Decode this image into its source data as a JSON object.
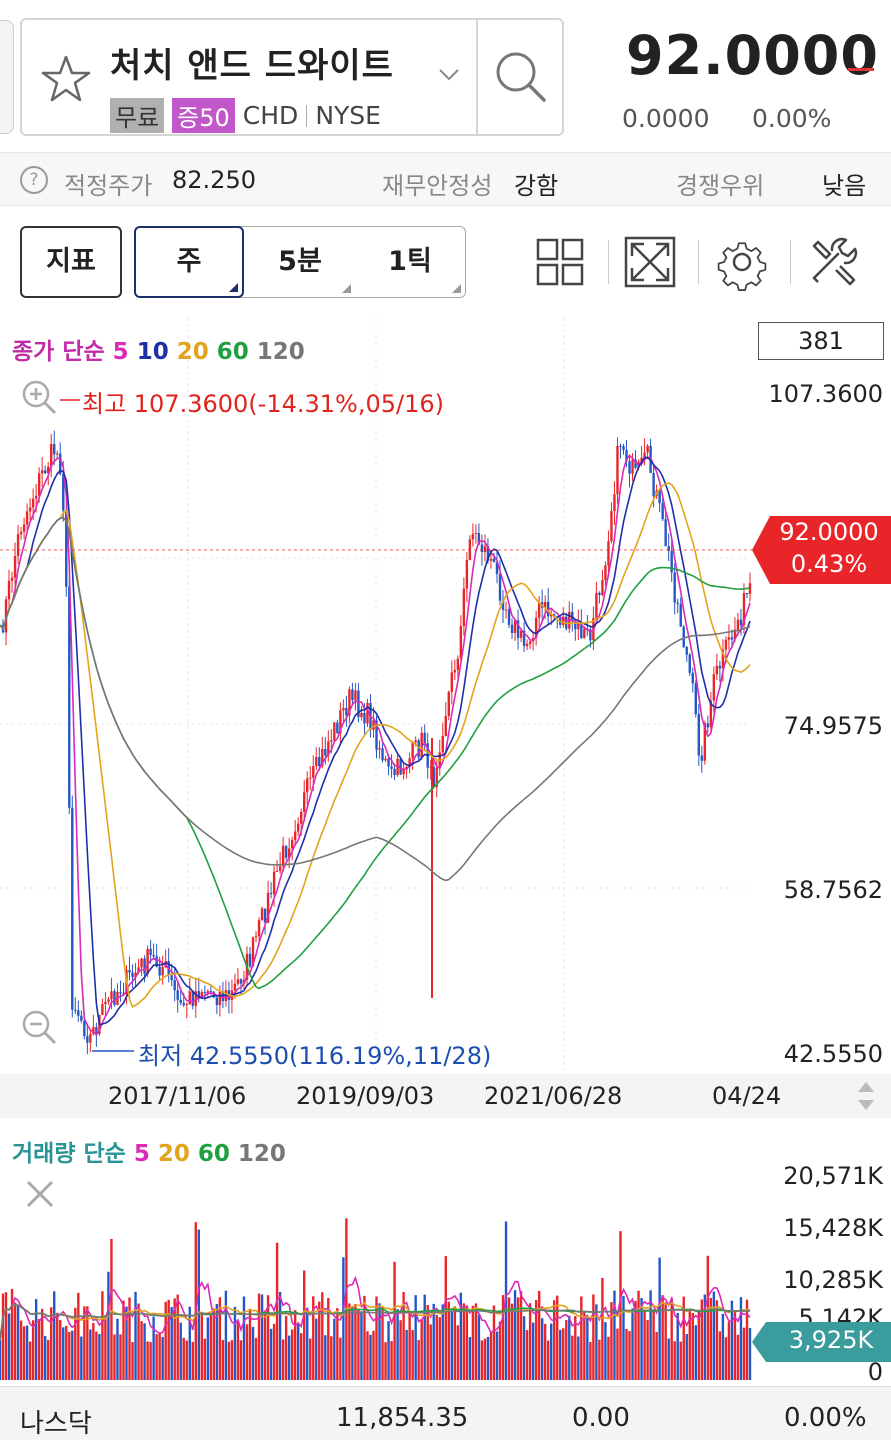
{
  "stock": {
    "name": "처치 앤드 드와이트",
    "tag_free": "무료",
    "tag_margin": "증50",
    "ticker": "CHD",
    "exchange": "NYSE",
    "price": "92.0000",
    "change": "0.0000",
    "change_rate": "0.00%"
  },
  "info_bar": {
    "fair_price_label": "적정주가",
    "fair_price_value": "82.250",
    "stability_label": "재무안정성",
    "stability_value": "강함",
    "competition_label": "경쟁우위",
    "competition_value": "낮음"
  },
  "toolbar": {
    "indicator_label": "지표",
    "periods": [
      "주",
      "5분",
      "1틱"
    ]
  },
  "price_chart": {
    "legend_title": "종가 단순",
    "ma": [
      {
        "label": "5",
        "color": "#d92bb8"
      },
      {
        "label": "10",
        "color": "#1f2fa8"
      },
      {
        "label": "20",
        "color": "#e2a41c"
      },
      {
        "label": "60",
        "color": "#20a040"
      },
      {
        "label": "120",
        "color": "#777777"
      }
    ],
    "bar_count": "381",
    "y_labels": [
      "107.3600",
      "74.9575",
      "58.7562",
      "42.5550"
    ],
    "current_price": "92.0000",
    "current_rate": "0.43%",
    "high_label": "최고 107.3600(-14.31%,05/16)",
    "low_label": "최저 42.5550(116.19%,11/28)",
    "up_color": "#e8262a",
    "down_color": "#2457c6"
  },
  "x_axis": {
    "labels": [
      "2017/11/06",
      "2019/09/03",
      "2021/06/28",
      "04/24"
    ]
  },
  "volume_chart": {
    "legend_title": "거래량 단순",
    "ma": [
      {
        "label": "5",
        "color": "#d92bb8"
      },
      {
        "label": "20",
        "color": "#e2a41c"
      },
      {
        "label": "60",
        "color": "#20a040"
      },
      {
        "label": "120",
        "color": "#777777"
      }
    ],
    "y_labels": [
      "20,571K",
      "15,428K",
      "10,285K",
      "5,142K",
      "0"
    ],
    "current_volume": "3,925K",
    "badge_color": "#3a9c9c"
  },
  "bottom_bar": {
    "index_name": "나스닥",
    "index_value": "11,854.35",
    "index_change": "0.00",
    "index_rate": "0.00%"
  }
}
